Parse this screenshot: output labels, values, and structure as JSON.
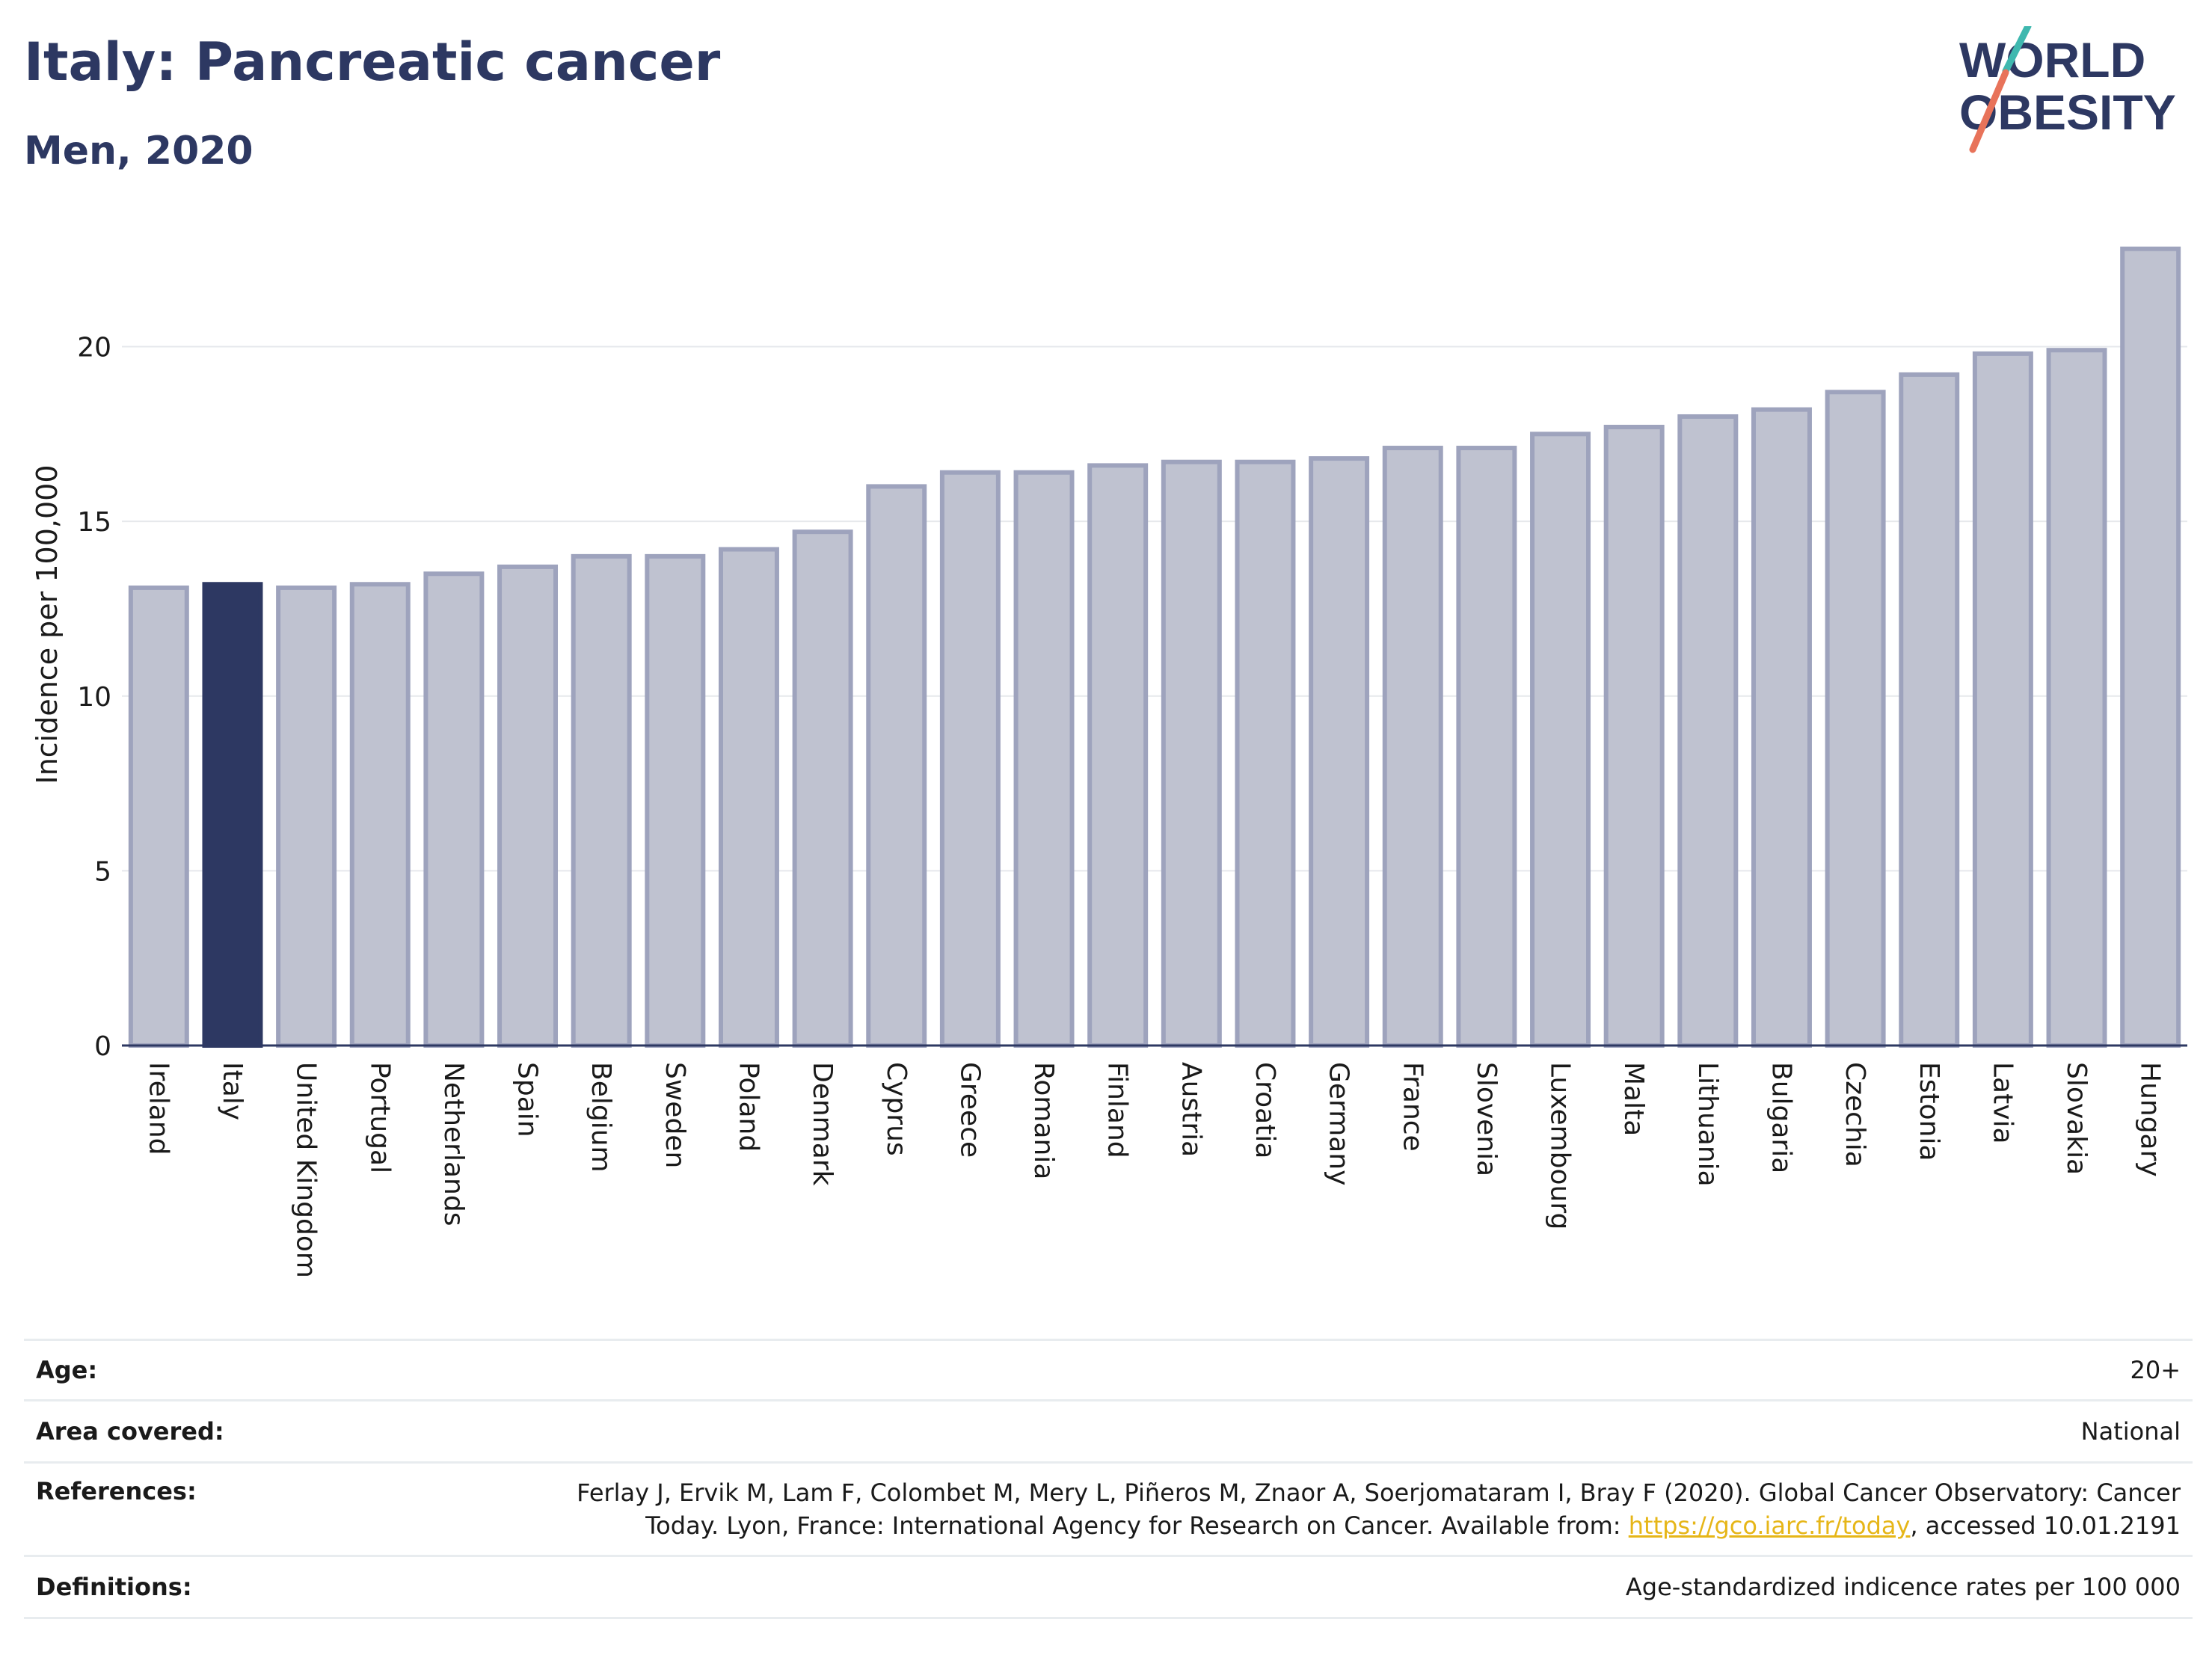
{
  "header": {
    "title": "Italy: Pancreatic cancer",
    "subtitle": "Men, 2020",
    "logo_line1": "WORLD",
    "logo_line2": "OBESITY"
  },
  "colors": {
    "highlight_bar": "#2d3862",
    "other_bar": "#bfc2d0",
    "other_bar_edge": "#9ea3bd",
    "text": "#2d3862",
    "link": "#e6b618",
    "logo_teal": "#3fb8af",
    "logo_coral": "#e8735a"
  },
  "chart_data": {
    "type": "bar",
    "title": "Italy: Pancreatic cancer",
    "subtitle": "Men, 2020",
    "ylabel": "Incidence per 100,000",
    "xlabel": "",
    "ylim": [
      0,
      23.5
    ],
    "yticks": [
      0,
      5,
      10,
      15,
      20
    ],
    "grid": true,
    "highlight": "Italy",
    "categories": [
      "Ireland",
      "Italy",
      "United Kingdom",
      "Portugal",
      "Netherlands",
      "Spain",
      "Belgium",
      "Sweden",
      "Poland",
      "Denmark",
      "Cyprus",
      "Greece",
      "Romania",
      "Finland",
      "Austria",
      "Croatia",
      "Germany",
      "France",
      "Slovenia",
      "Luxembourg",
      "Malta",
      "Lithuania",
      "Bulgaria",
      "Czechia",
      "Estonia",
      "Latvia",
      "Slovakia",
      "Hungary"
    ],
    "values": [
      13.1,
      13.2,
      13.1,
      13.2,
      13.5,
      13.7,
      14.0,
      14.0,
      14.2,
      14.7,
      16.0,
      16.4,
      16.4,
      16.6,
      16.7,
      16.7,
      16.8,
      17.1,
      17.1,
      17.5,
      17.7,
      18.0,
      18.2,
      18.7,
      19.2,
      19.8,
      19.9,
      22.8
    ]
  },
  "meta": [
    {
      "key": "Age:",
      "value": "20+"
    },
    {
      "key": "Area covered:",
      "value": "National"
    },
    {
      "key": "References:",
      "value_line1": "Ferlay J, Ervik M, Lam F, Colombet M, Mery L, Piñeros M, Znaor A, Soerjomataram I, Bray F (2020). Global Cancer Observatory: Cancer",
      "value_line2_pre": "Today. Lyon, France: International Agency for Research on Cancer. Available from: ",
      "link": "https://gco.iarc.fr/today",
      "value_line2_post": ", accessed 10.01.2191"
    },
    {
      "key": "Definitions:",
      "value": "Age-standardized indicence rates per 100 000"
    }
  ]
}
